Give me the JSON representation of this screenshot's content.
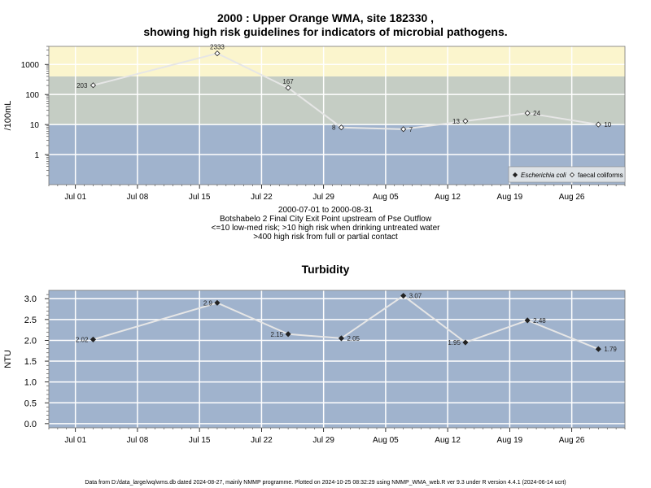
{
  "chart_data": [
    {
      "type": "line",
      "title_line1": "2000 : Upper Orange WMA, site 182330 ,",
      "title_line2": "showing high risk guidelines for indicators of microbial pathogens.",
      "ylabel": "/100mL",
      "yscale": "log",
      "ylim": [
        0.1,
        4000
      ],
      "yticks": [
        "1",
        "10",
        "100",
        "1000"
      ],
      "xticks": [
        "Jul 01",
        "Jul 08",
        "Jul 15",
        "Jul 22",
        "Jul 29",
        "Aug 05",
        "Aug 12",
        "Aug 19",
        "Aug 26"
      ],
      "grid": true,
      "risk_bands": [
        {
          "label": "<=10 low-med risk",
          "from": 0.1,
          "to": 10,
          "color": "#a0b3cd"
        },
        {
          "label": ">10 high risk when drinking untreated water",
          "from": 10,
          "to": 400,
          "color": "#c5cdc4"
        },
        {
          "label": ">400 high risk from full or partial contact",
          "from": 400,
          "to": 4000,
          "color": "#fbf5cd"
        }
      ],
      "legend_position": "bottom-right",
      "series": [
        {
          "name": "Escherichia coli",
          "marker": "filled-diamond",
          "x": [],
          "y": []
        },
        {
          "name": "faecal coliforms",
          "marker": "open-diamond",
          "x": [
            "2000-07-03",
            "2000-07-17",
            "2000-07-25",
            "2000-07-31",
            "2000-08-07",
            "2000-08-14",
            "2000-08-21",
            "2000-08-29"
          ],
          "y": [
            203,
            2333,
            167,
            8,
            7,
            13,
            24,
            10
          ],
          "labels": [
            "203",
            "2333",
            "167",
            "8",
            "7",
            "13",
            "24",
            "10"
          ]
        }
      ]
    },
    {
      "type": "line",
      "title": "Turbidity",
      "ylabel": "NTU",
      "ylim": [
        -0.1,
        3.2
      ],
      "yticks": [
        "0.0",
        "0.5",
        "1.0",
        "1.5",
        "2.0",
        "2.5",
        "3.0"
      ],
      "xticks": [
        "Jul 01",
        "Jul 08",
        "Jul 15",
        "Jul 22",
        "Jul 29",
        "Aug 05",
        "Aug 12",
        "Aug 19",
        "Aug 26"
      ],
      "grid": true,
      "background": "#a0b3cd",
      "series": [
        {
          "name": "",
          "marker": "filled-diamond",
          "x": [
            "2000-07-03",
            "2000-07-17",
            "2000-07-25",
            "2000-07-31",
            "2000-08-07",
            "2000-08-14",
            "2000-08-21",
            "2000-08-29"
          ],
          "y": [
            2.02,
            2.9,
            2.15,
            2.05,
            3.07,
            1.95,
            2.48,
            1.79
          ],
          "labels": [
            "2.02",
            "2.9",
            "2.15",
            "2.05",
            "3.07",
            "1.95",
            "2.48",
            "1.79"
          ]
        }
      ]
    }
  ],
  "subtitle": {
    "date_range": "2000-07-01 to 2000-08-31",
    "site_name": "Botshabelo 2 Final City Exit Point upstream of Pse Outflow",
    "line_low": "<=10 low-med risk; >10 high risk when drinking untreated water",
    "line_high": ">400 high risk from full or partial contact"
  },
  "footer": "Data from D:/data_large/wq/wms.db dated 2024-08-27, mainly NMMP programme. Plotted on 2024-10-25 08:32:29 using NMMP_WMA_web.R ver 9.3 under R version 4.4.1 (2024-06-14 ucrt)",
  "colors": {
    "low_band": "#a0b3cd",
    "mid_band": "#c5cdc4",
    "high_band": "#fbf5cd",
    "grid": "#ffffff",
    "line": "#e6e6e6"
  }
}
